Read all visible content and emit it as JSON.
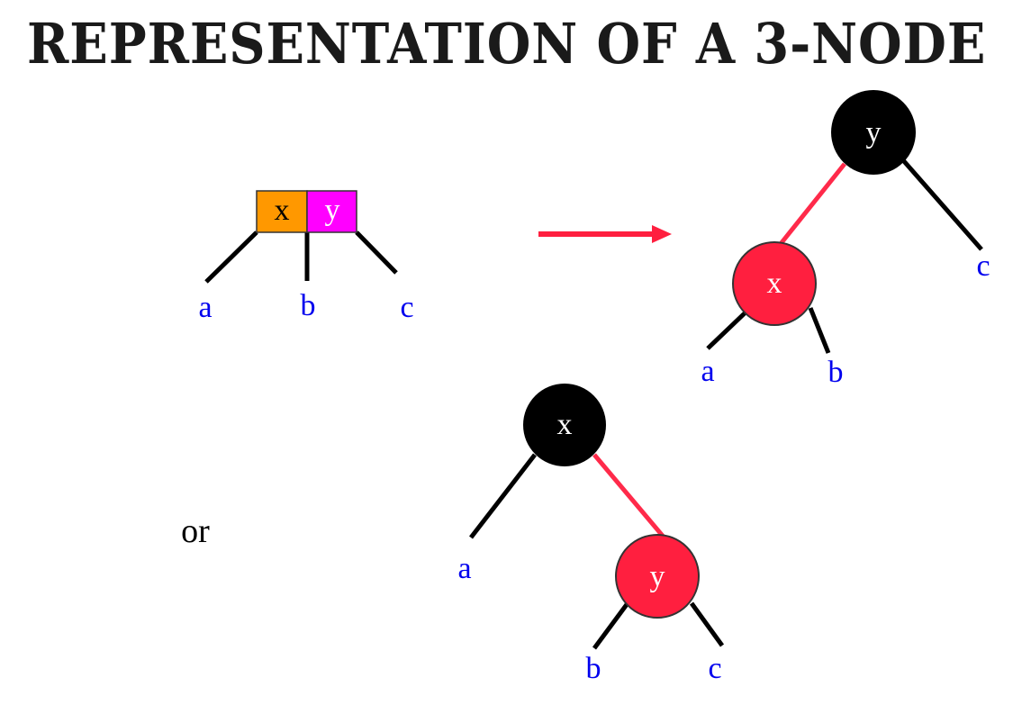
{
  "title": "REPRESENTATION OF A 3-NODE",
  "colors": {
    "black_node": "#000000",
    "red_node": "#ff1f3f",
    "red_edge": "#ff2a4a",
    "key_x_fill": "#ff9800",
    "key_y_fill": "#ff00ff",
    "leaf_label": "#0000ee",
    "arrow": "#ff1f3f"
  },
  "three_node": {
    "keys": [
      "x",
      "y"
    ],
    "children": [
      "a",
      "b",
      "c"
    ]
  },
  "connector": {
    "arrow": "right-arrow",
    "or_label": "or"
  },
  "tree_left_leaning": {
    "root": "y",
    "red_child": "x",
    "leaves": [
      "a",
      "b",
      "c"
    ]
  },
  "tree_right_leaning": {
    "root": "x",
    "red_child": "y",
    "leaves": [
      "a",
      "b",
      "c"
    ]
  }
}
